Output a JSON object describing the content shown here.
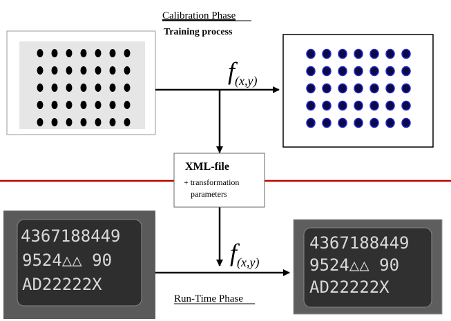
{
  "header": {
    "title": "Calibration Phase",
    "subtitle": "Training process"
  },
  "function_label": {
    "name": "f",
    "subscript": "(x,y)"
  },
  "xml_box": {
    "title": "XML-file",
    "lines": [
      "+ transformation",
      "parameters"
    ]
  },
  "footer": "Run-Time Phase",
  "chip_text": [
    "4367188449",
    "9524△△ 90",
    "AD22222X"
  ]
}
